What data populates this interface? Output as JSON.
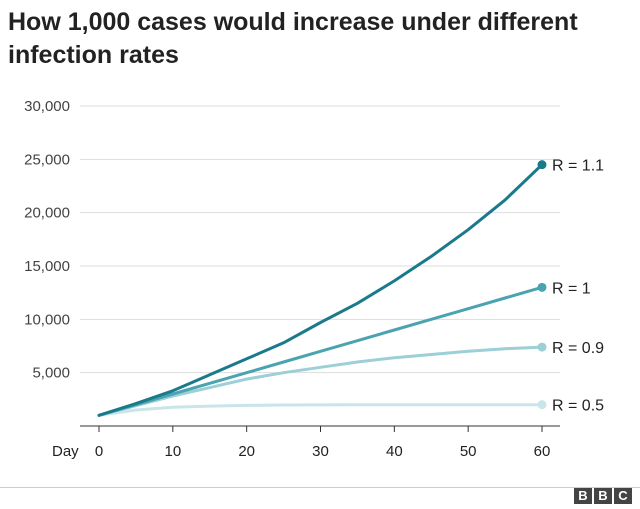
{
  "chart_data": {
    "type": "line",
    "title": "How 1,000 cases would increase under different infection rates",
    "x_prefix": "Day",
    "x_ticks": [
      0,
      10,
      20,
      30,
      40,
      50,
      60
    ],
    "y_ticks": [
      5000,
      10000,
      15000,
      20000,
      25000,
      30000
    ],
    "y_tick_labels": [
      "5,000",
      "10,000",
      "15,000",
      "20,000",
      "25,000",
      "30,000"
    ],
    "xlim": [
      0,
      60
    ],
    "ylim": [
      0,
      30000
    ],
    "grid": "horizontal",
    "x": [
      0,
      5,
      10,
      15,
      20,
      25,
      30,
      35,
      40,
      45,
      50,
      55,
      60
    ],
    "series": [
      {
        "name": "R = 1.1",
        "color": "#1a7a8c",
        "values": [
          1000,
          2100,
          3300,
          4800,
          6300,
          7800,
          9700,
          11500,
          13600,
          15900,
          18400,
          21200,
          24500
        ]
      },
      {
        "name": "R = 1",
        "color": "#4aa3b0",
        "values": [
          1000,
          2000,
          3000,
          4000,
          5000,
          6000,
          7000,
          8000,
          9000,
          10000,
          11000,
          12000,
          13000
        ]
      },
      {
        "name": "R = 0.9",
        "color": "#9ccfd6",
        "values": [
          1000,
          1900,
          2800,
          3600,
          4400,
          5000,
          5500,
          6000,
          6400,
          6700,
          7000,
          7250,
          7400
        ]
      },
      {
        "name": "R = 0.5",
        "color": "#c9e5e9",
        "values": [
          1000,
          1500,
          1750,
          1870,
          1930,
          1965,
          1980,
          1990,
          1995,
          1998,
          2000,
          2000,
          2000
        ]
      }
    ]
  },
  "logo": [
    "B",
    "B",
    "C"
  ]
}
